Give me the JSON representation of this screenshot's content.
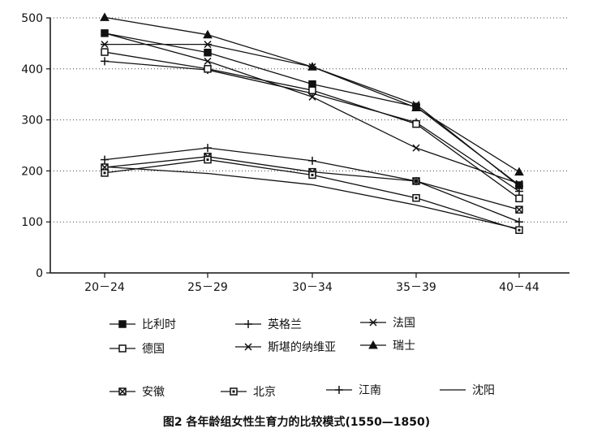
{
  "chart_data": {
    "type": "line",
    "title": "",
    "caption": "图2  各年龄组女性生育力的比较模式(1550—1850)",
    "xlabel": "",
    "ylabel": "",
    "categories": [
      "20－24",
      "25－29",
      "30－34",
      "35－39",
      "40－44"
    ],
    "yticks": [
      "0",
      "100",
      "200",
      "300",
      "400",
      "500"
    ],
    "ylim": [
      0,
      500
    ],
    "grid": "horizontal-dotted",
    "legend_placement": "bottom",
    "series": [
      {
        "name": "比利时",
        "marker": "filled-square",
        "values": [
          470,
          432,
          370,
          326,
          172
        ]
      },
      {
        "name": "英格兰",
        "marker": "plus",
        "values": [
          415,
          398,
          352,
          295,
          160
        ]
      },
      {
        "name": "法国",
        "marker": "asterisk",
        "values": [
          448,
          448,
          404,
          330,
          170
        ]
      },
      {
        "name": "德国",
        "marker": "open-square",
        "values": [
          433,
          400,
          358,
          292,
          146
        ]
      },
      {
        "name": "斯堪的纳维亚",
        "marker": "x",
        "values": [
          470,
          415,
          345,
          245,
          175
        ]
      },
      {
        "name": "瑞士",
        "marker": "filled-triangle",
        "values": [
          501,
          467,
          404,
          324,
          198
        ]
      },
      {
        "name": "安徽",
        "marker": "open-square-x",
        "values": [
          207,
          228,
          198,
          180,
          124
        ]
      },
      {
        "name": "北京",
        "marker": "open-square-dot",
        "values": [
          196,
          222,
          192,
          147,
          84
        ]
      },
      {
        "name": "江南",
        "marker": "plus",
        "values": [
          222,
          245,
          220,
          180,
          100
        ]
      },
      {
        "name": "沈阳",
        "marker": "none",
        "values": [
          208,
          195,
          173,
          133,
          86
        ]
      }
    ]
  }
}
